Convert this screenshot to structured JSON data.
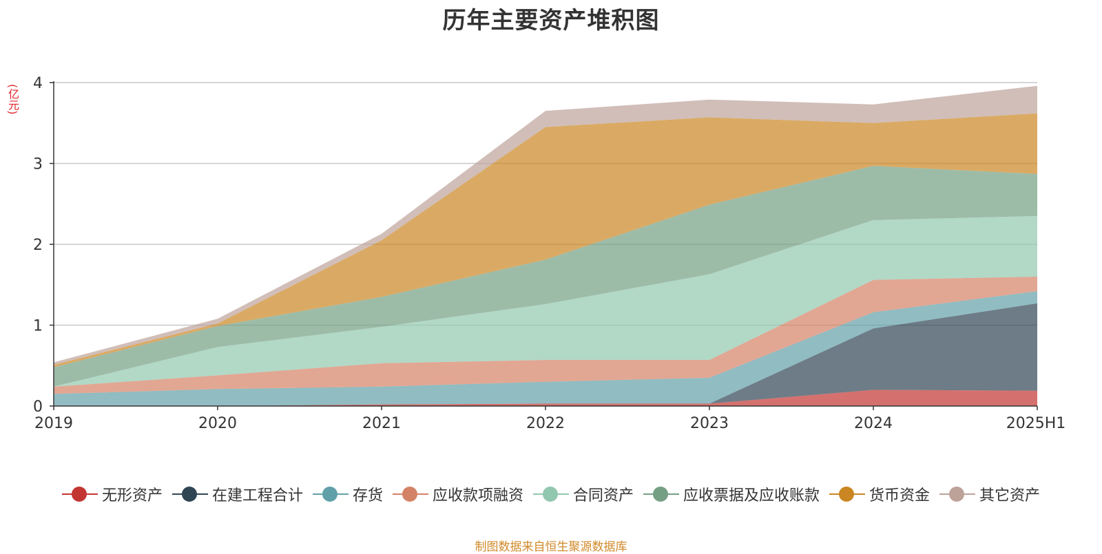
{
  "title": "历年主要资产堆积图",
  "unit_label": "(亿元)",
  "source_note": "制图数据来自恒生聚源数据库",
  "chart_data": {
    "type": "area",
    "stacked": true,
    "categories": [
      "2019",
      "2020",
      "2021",
      "2022",
      "2023",
      "2024",
      "2025H1"
    ],
    "ylim": [
      0,
      4
    ],
    "yticks": [
      "0",
      "1",
      "2",
      "3",
      "4"
    ],
    "grid": true,
    "legend_position": "bottom",
    "series": [
      {
        "name": "无形资产",
        "color": "#c23531",
        "values": [
          0.0,
          0.0,
          0.02,
          0.03,
          0.03,
          0.2,
          0.19
        ]
      },
      {
        "name": "在建工程合计",
        "color": "#2f4554",
        "values": [
          0.0,
          0.0,
          0.0,
          0.0,
          0.0,
          0.76,
          1.08
        ]
      },
      {
        "name": "存货",
        "color": "#61a0a8",
        "values": [
          0.15,
          0.21,
          0.22,
          0.27,
          0.32,
          0.2,
          0.15
        ]
      },
      {
        "name": "应收款项融资",
        "color": "#d48265",
        "values": [
          0.09,
          0.17,
          0.29,
          0.27,
          0.22,
          0.4,
          0.18
        ]
      },
      {
        "name": "合同资产",
        "color": "#91c7ae",
        "values": [
          0.0,
          0.35,
          0.45,
          0.69,
          1.06,
          0.74,
          0.75
        ]
      },
      {
        "name": "应收票据及应收账款",
        "color": "#749f83",
        "values": [
          0.24,
          0.26,
          0.37,
          0.55,
          0.86,
          0.67,
          0.52
        ]
      },
      {
        "name": "货币资金",
        "color": "#ca8622",
        "values": [
          0.03,
          0.03,
          0.7,
          1.64,
          1.08,
          0.53,
          0.75
        ]
      },
      {
        "name": "其它资产",
        "color": "#bda29a",
        "values": [
          0.03,
          0.06,
          0.08,
          0.2,
          0.22,
          0.23,
          0.34
        ]
      }
    ]
  }
}
